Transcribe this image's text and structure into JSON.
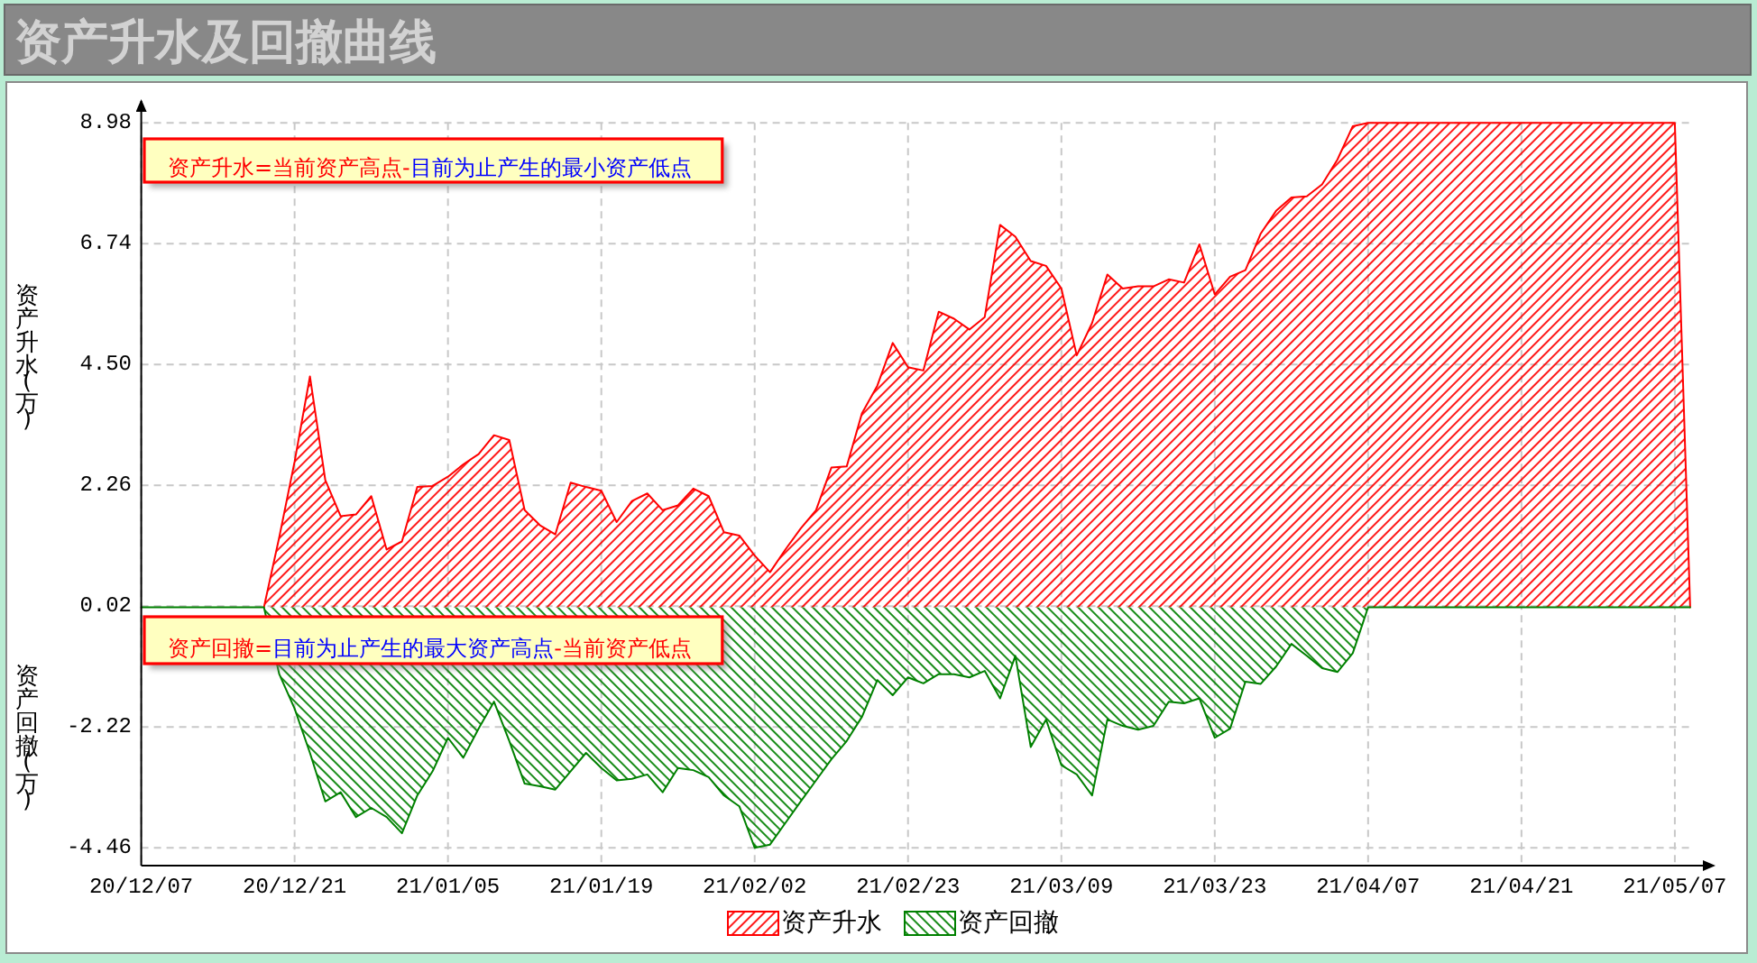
{
  "chart_data": {
    "type": "area",
    "title": "资产升水及回撤曲线",
    "ylabel": "资产升水(万)",
    "categories": [
      "20/12/07",
      null,
      null,
      null,
      null,
      null,
      null,
      null,
      null,
      null,
      "20/12/21",
      null,
      null,
      null,
      null,
      null,
      null,
      null,
      null,
      null,
      "21/01/05",
      null,
      null,
      null,
      null,
      null,
      null,
      null,
      null,
      null,
      "21/01/19",
      null,
      null,
      null,
      null,
      null,
      null,
      null,
      null,
      null,
      "21/02/02",
      null,
      null,
      null,
      null,
      null,
      null,
      null,
      null,
      null,
      "21/02/23",
      null,
      null,
      null,
      null,
      null,
      null,
      null,
      null,
      null,
      "21/03/09",
      null,
      null,
      null,
      null,
      null,
      null,
      null,
      null,
      null,
      "21/03/23",
      null,
      null,
      null,
      null,
      null,
      null,
      null,
      null,
      null,
      "21/04/07",
      null,
      null,
      null,
      null,
      null,
      null,
      null,
      null,
      null,
      "21/04/21",
      null,
      null,
      null,
      null,
      null,
      null,
      null,
      null,
      null,
      "21/05/07",
      null
    ],
    "series": [
      {
        "name": "资产升水",
        "color": "#ff0000",
        "values": [
          null,
          null,
          null,
          null,
          null,
          null,
          null,
          null,
          0,
          1.3,
          2.7,
          4.28,
          2.36,
          1.69,
          1.72,
          2.06,
          1.07,
          1.22,
          2.23,
          2.25,
          2.42,
          2.65,
          2.84,
          3.19,
          3.1,
          1.8,
          1.52,
          1.35,
          2.31,
          2.23,
          2.16,
          1.58,
          1.97,
          2.11,
          1.8,
          1.89,
          2.2,
          2.06,
          1.39,
          1.33,
          0.96,
          0.65,
          1.07,
          1.46,
          1.8,
          2.59,
          2.61,
          3.6,
          4.11,
          4.9,
          4.45,
          4.39,
          5.48,
          5.35,
          5.15,
          5.38,
          7.09,
          6.87,
          6.42,
          6.33,
          5.91,
          4.67,
          5.27,
          6.17,
          5.91,
          5.95,
          5.95,
          6.08,
          6.02,
          6.73,
          5.8,
          6.13,
          6.25,
          6.93,
          7.35,
          7.6,
          7.62,
          7.84,
          8.3,
          8.92,
          8.98,
          8.98,
          8.98,
          8.98,
          8.98,
          8.98,
          8.98,
          8.98,
          8.98,
          8.98,
          8.98,
          8.98,
          8.98,
          8.98,
          8.98,
          8.98,
          8.98,
          8.98,
          8.98,
          8.98,
          8.98,
          0
        ]
      },
      {
        "name": "资产回撤",
        "color": "#008000",
        "values": [
          0,
          0,
          0,
          0,
          0,
          0,
          0,
          0,
          0,
          -1.24,
          -1.88,
          -2.7,
          -3.6,
          -3.43,
          -3.89,
          -3.72,
          -3.89,
          -4.19,
          -3.49,
          -3.04,
          -2.42,
          -2.79,
          -2.25,
          -1.75,
          -2.48,
          -3.27,
          -3.32,
          -3.38,
          -3.04,
          -2.7,
          -2.98,
          -3.21,
          -3.18,
          -3.1,
          -3.43,
          -2.98,
          -3.02,
          -3.15,
          -3.49,
          -3.69,
          -4.46,
          -4.4,
          -4.0,
          -3.6,
          -3.21,
          -2.82,
          -2.48,
          -2.03,
          -1.35,
          -1.63,
          -1.3,
          -1.41,
          -1.24,
          -1.24,
          -1.3,
          -1.18,
          -1.69,
          -0.9,
          -2.59,
          -2.08,
          -2.93,
          -3.1,
          -3.49,
          -2.08,
          -2.2,
          -2.27,
          -2.2,
          -1.75,
          -1.78,
          -1.69,
          -2.42,
          -2.25,
          -1.38,
          -1.42,
          -1.1,
          -0.68,
          -0.9,
          -1.13,
          -1.2,
          -0.85,
          0,
          0,
          0,
          0,
          0,
          0,
          0,
          0,
          0,
          0,
          0,
          0,
          0,
          0,
          0,
          0,
          0,
          0,
          0,
          0,
          0,
          0
        ]
      }
    ],
    "ylim": [
      -4.79,
      9.32
    ],
    "yticks": [
      -4.46,
      -2.22,
      0.02,
      2.26,
      {
        "value": 4.5,
        "label": "4.50"
      },
      6.74,
      8.98
    ],
    "grid": true,
    "legend": "bottom",
    "annotations": [
      "资产升水=当前资产高点-",
      "目前为止产生的最小资产低点",
      "资产回撤=",
      "目前为止产生的最大资产高点",
      "-当前资产低点",
      "资产回撤(万)"
    ]
  }
}
